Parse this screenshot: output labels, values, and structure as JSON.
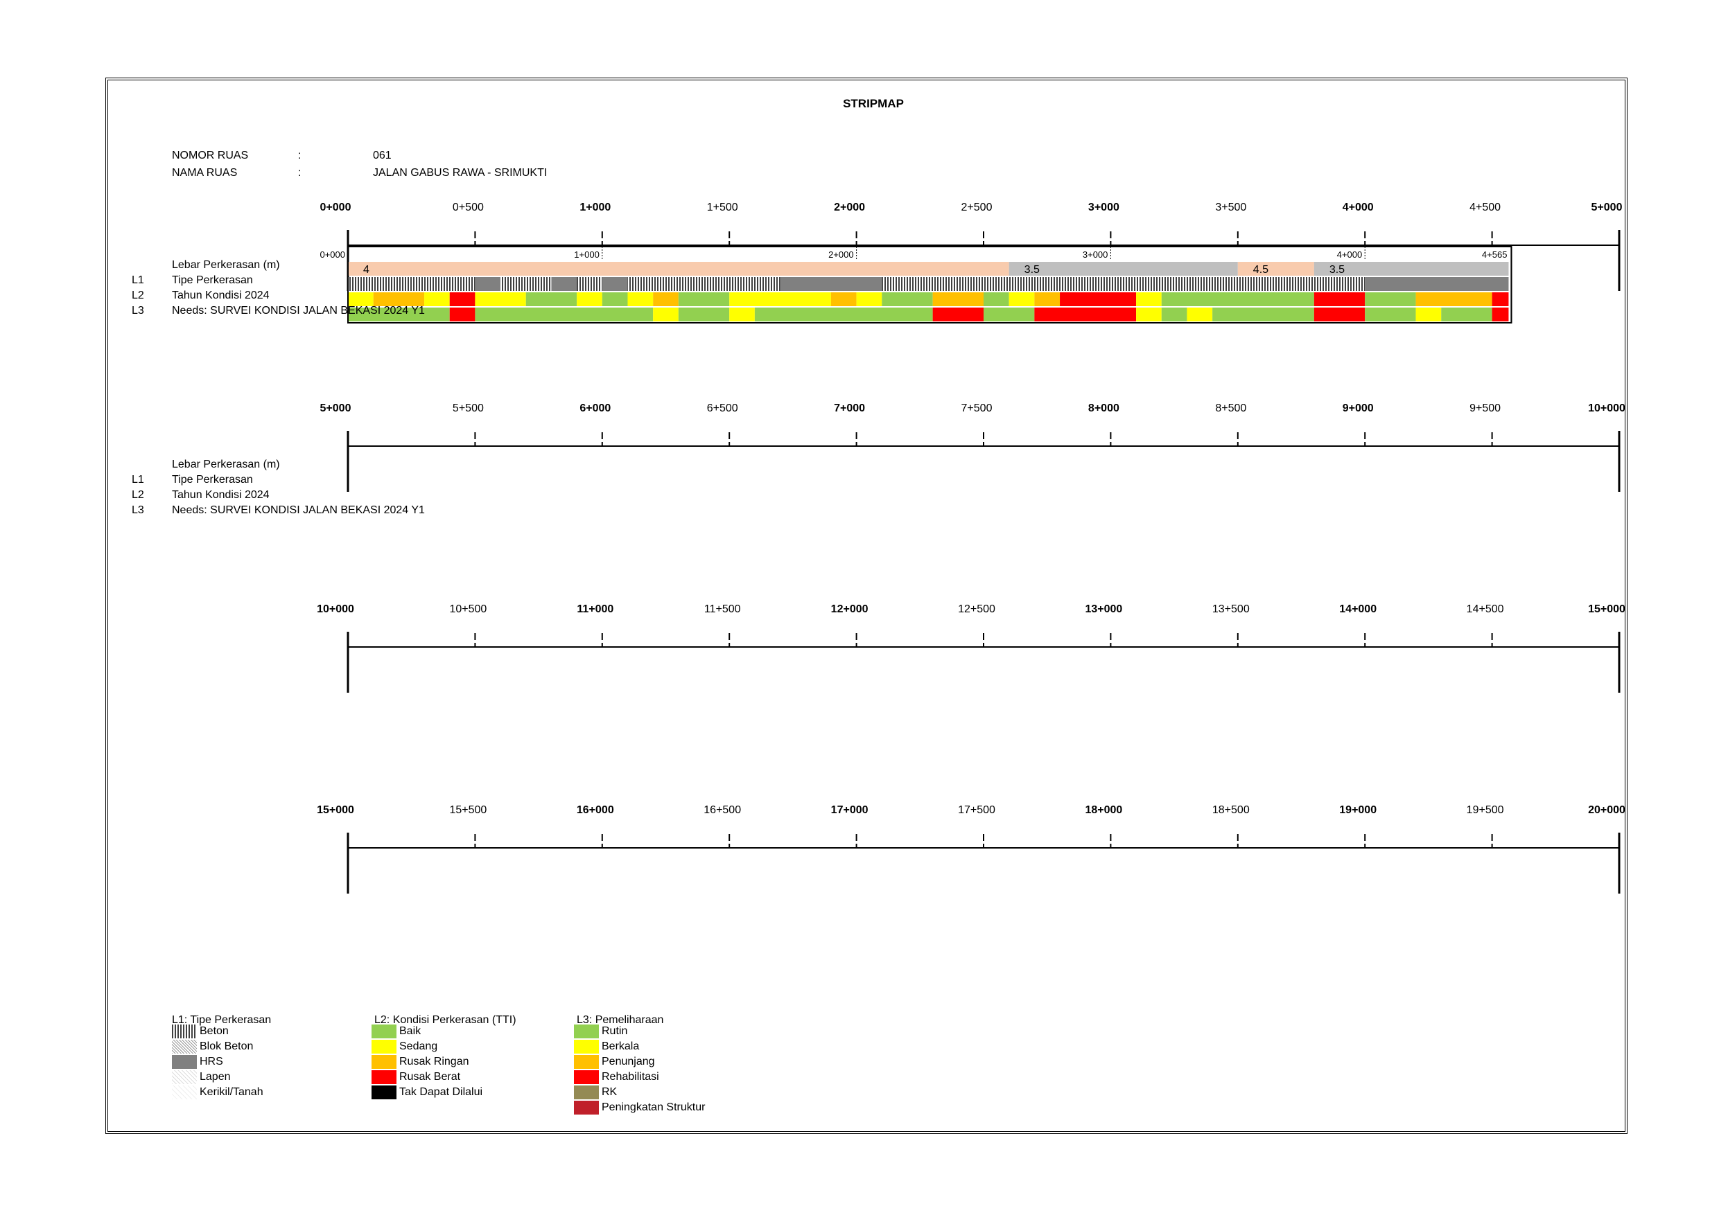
{
  "title": "STRIPMAP",
  "info": {
    "nomor_label": "NOMOR RUAS",
    "nomor_sep": ":",
    "nomor_value": "061",
    "nama_label": "NAMA RUAS",
    "nama_sep": ":",
    "nama_value": "JALAN GABUS RAWA - SRIMUKTI"
  },
  "row_labels": {
    "lebar": "Lebar Perkerasan (m)",
    "l1_code": "L1",
    "l1": "Tipe Perkerasan",
    "l2_code": "L2",
    "l2": "Tahun Kondisi 2024",
    "l3_code": "L3",
    "l3": "Needs: SURVEI KONDISI JALAN BEKASI 2024 Y1"
  },
  "colors": {
    "baik": "#92d050",
    "sedang": "#ffff00",
    "rusak_ringan": "#ffc000",
    "rusak_berat": "#ff0000",
    "tak_dapat": "#000000",
    "rk": "#948a54",
    "peningkatan": "#c0202a",
    "lebar_4": "#f8cbad",
    "lebar_35": "#bfbfbf",
    "hrs": "#808080"
  },
  "chart_data": {
    "type": "stripmap",
    "road_length_km": 4.565,
    "segment_end_label": "4+565",
    "sections": [
      {
        "start": 0,
        "end": 5,
        "ticks": [
          "0+000",
          "0+500",
          "1+000",
          "1+500",
          "2+000",
          "2+500",
          "3+000",
          "3+500",
          "4+000",
          "4+500",
          "5+000"
        ]
      },
      {
        "start": 5,
        "end": 10,
        "ticks": [
          "5+000",
          "5+500",
          "6+000",
          "6+500",
          "7+000",
          "7+500",
          "8+000",
          "8+500",
          "9+000",
          "9+500",
          "10+000"
        ]
      },
      {
        "start": 10,
        "end": 15,
        "ticks": [
          "10+000",
          "10+500",
          "11+000",
          "11+500",
          "12+000",
          "12+500",
          "13+000",
          "13+500",
          "14+000",
          "14+500",
          "15+000"
        ]
      },
      {
        "start": 15,
        "end": 20,
        "ticks": [
          "15+000",
          "15+500",
          "16+000",
          "16+500",
          "17+000",
          "17+500",
          "18+000",
          "18+500",
          "19+000",
          "19+500",
          "20+000"
        ]
      }
    ],
    "inner_ticks": [
      "0+000",
      "1+000",
      "2+000",
      "3+000",
      "4+000"
    ],
    "lebar": [
      {
        "from": 0.0,
        "to": 2.6,
        "value": "4",
        "color": "lebar_4"
      },
      {
        "from": 2.6,
        "to": 3.5,
        "value": "3.5",
        "color": "lebar_35"
      },
      {
        "from": 3.5,
        "to": 3.8,
        "value": "4.5",
        "color": "lebar_4"
      },
      {
        "from": 3.8,
        "to": 4.6,
        "value": "3.5",
        "color": "lebar_35"
      }
    ],
    "tipe": [
      {
        "from": 0.0,
        "to": 0.5,
        "type": "beton"
      },
      {
        "from": 0.5,
        "to": 0.6,
        "type": "hrs"
      },
      {
        "from": 0.6,
        "to": 0.8,
        "type": "beton"
      },
      {
        "from": 0.8,
        "to": 0.9,
        "type": "hrs"
      },
      {
        "from": 0.9,
        "to": 1.0,
        "type": "beton"
      },
      {
        "from": 1.0,
        "to": 1.1,
        "type": "hrs"
      },
      {
        "from": 1.1,
        "to": 1.7,
        "type": "beton"
      },
      {
        "from": 1.7,
        "to": 2.1,
        "type": "hrs"
      },
      {
        "from": 2.1,
        "to": 4.0,
        "type": "beton"
      },
      {
        "from": 4.0,
        "to": 4.6,
        "type": "hrs"
      }
    ],
    "kondisi": [
      {
        "from": 0.0,
        "to": 0.1,
        "class": "sedang"
      },
      {
        "from": 0.1,
        "to": 0.3,
        "class": "rusak_ringan"
      },
      {
        "from": 0.3,
        "to": 0.4,
        "class": "sedang"
      },
      {
        "from": 0.4,
        "to": 0.5,
        "class": "rusak_berat"
      },
      {
        "from": 0.5,
        "to": 0.7,
        "class": "sedang"
      },
      {
        "from": 0.7,
        "to": 0.9,
        "class": "baik"
      },
      {
        "from": 0.9,
        "to": 1.0,
        "class": "sedang"
      },
      {
        "from": 1.0,
        "to": 1.1,
        "class": "baik"
      },
      {
        "from": 1.1,
        "to": 1.2,
        "class": "sedang"
      },
      {
        "from": 1.2,
        "to": 1.3,
        "class": "rusak_ringan"
      },
      {
        "from": 1.3,
        "to": 1.5,
        "class": "baik"
      },
      {
        "from": 1.5,
        "to": 1.9,
        "class": "sedang"
      },
      {
        "from": 1.9,
        "to": 2.0,
        "class": "rusak_ringan"
      },
      {
        "from": 2.0,
        "to": 2.1,
        "class": "sedang"
      },
      {
        "from": 2.1,
        "to": 2.3,
        "class": "baik"
      },
      {
        "from": 2.3,
        "to": 2.5,
        "class": "rusak_ringan"
      },
      {
        "from": 2.5,
        "to": 2.6,
        "class": "baik"
      },
      {
        "from": 2.6,
        "to": 2.7,
        "class": "sedang"
      },
      {
        "from": 2.7,
        "to": 2.8,
        "class": "rusak_ringan"
      },
      {
        "from": 2.8,
        "to": 3.1,
        "class": "rusak_berat"
      },
      {
        "from": 3.1,
        "to": 3.2,
        "class": "sedang"
      },
      {
        "from": 3.2,
        "to": 3.8,
        "class": "baik"
      },
      {
        "from": 3.8,
        "to": 4.0,
        "class": "rusak_berat"
      },
      {
        "from": 4.0,
        "to": 4.2,
        "class": "baik"
      },
      {
        "from": 4.2,
        "to": 4.5,
        "class": "rusak_ringan"
      },
      {
        "from": 4.5,
        "to": 4.6,
        "class": "rusak_berat"
      }
    ],
    "needs": [
      {
        "from": 0.0,
        "to": 0.4,
        "class": "baik"
      },
      {
        "from": 0.4,
        "to": 0.5,
        "class": "rusak_berat"
      },
      {
        "from": 0.5,
        "to": 1.2,
        "class": "baik"
      },
      {
        "from": 1.2,
        "to": 1.3,
        "class": "sedang"
      },
      {
        "from": 1.3,
        "to": 1.5,
        "class": "baik"
      },
      {
        "from": 1.5,
        "to": 1.6,
        "class": "sedang"
      },
      {
        "from": 1.6,
        "to": 2.3,
        "class": "baik"
      },
      {
        "from": 2.3,
        "to": 2.5,
        "class": "rusak_berat"
      },
      {
        "from": 2.5,
        "to": 2.7,
        "class": "baik"
      },
      {
        "from": 2.7,
        "to": 3.1,
        "class": "rusak_berat"
      },
      {
        "from": 3.1,
        "to": 3.2,
        "class": "sedang"
      },
      {
        "from": 3.2,
        "to": 3.3,
        "class": "baik"
      },
      {
        "from": 3.3,
        "to": 3.4,
        "class": "sedang"
      },
      {
        "from": 3.4,
        "to": 3.8,
        "class": "baik"
      },
      {
        "from": 3.8,
        "to": 4.0,
        "class": "rusak_berat"
      },
      {
        "from": 4.0,
        "to": 4.2,
        "class": "baik"
      },
      {
        "from": 4.2,
        "to": 4.3,
        "class": "sedang"
      },
      {
        "from": 4.3,
        "to": 4.5,
        "class": "baik"
      },
      {
        "from": 4.5,
        "to": 4.6,
        "class": "rusak_berat"
      }
    ]
  },
  "legend": {
    "l1_title": "L1: Tipe Perkerasan",
    "l1_items": [
      {
        "label": "Beton",
        "pattern": "beton"
      },
      {
        "label": "Blok Beton",
        "pattern": "blok"
      },
      {
        "label": "HRS",
        "pattern": "hrs"
      },
      {
        "label": "Lapen",
        "pattern": "lapen"
      },
      {
        "label": "Kerikil/Tanah",
        "pattern": "kerikil"
      }
    ],
    "l2_title": "L2: Kondisi Perkerasan (TTI)",
    "l2_items": [
      {
        "label": "Baik",
        "color": "#92d050"
      },
      {
        "label": "Sedang",
        "color": "#ffff00"
      },
      {
        "label": "Rusak Ringan",
        "color": "#ffc000"
      },
      {
        "label": "Rusak Berat",
        "color": "#ff0000"
      },
      {
        "label": "Tak Dapat Dilalui",
        "color": "#000000"
      }
    ],
    "l3_title": "L3: Pemeliharaan",
    "l3_items": [
      {
        "label": "Rutin",
        "color": "#92d050"
      },
      {
        "label": "Berkala",
        "color": "#ffff00"
      },
      {
        "label": "Penunjang",
        "color": "#ffc000"
      },
      {
        "label": "Rehabilitasi",
        "color": "#ff0000"
      },
      {
        "label": "RK",
        "color": "#948a54"
      },
      {
        "label": "Peningkatan Struktur",
        "color": "#c0202a"
      }
    ]
  }
}
